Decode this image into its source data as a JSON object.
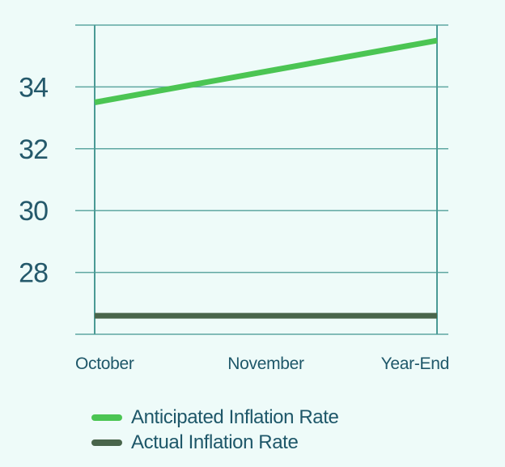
{
  "page": {
    "background": "#eefbf9"
  },
  "chart_data": {
    "type": "line",
    "title": "",
    "xlabel": "",
    "ylabel": "",
    "categories": [
      "October",
      "November",
      "Year-End"
    ],
    "series": [
      {
        "name": "Anticipated Inflation Rate",
        "values": [
          33.5,
          34.5,
          35.5
        ],
        "color": "#4bc553"
      },
      {
        "name": "Actual Inflation Rate",
        "values": [
          26.6,
          26.6,
          26.6
        ],
        "color": "#49654b"
      }
    ],
    "ylim": [
      26,
      36
    ],
    "y_grid_step": 2,
    "y_tick_labels": [
      "28",
      "30",
      "32",
      "34"
    ],
    "grid": true,
    "legend_position": "bottom-left",
    "colors": {
      "grid_line": "#5fa7a2",
      "axis_line": "#4a9a95",
      "y_tick_text": "#24596b",
      "x_tick_text": "#1e5769",
      "legend_text": "#1e5769"
    }
  }
}
